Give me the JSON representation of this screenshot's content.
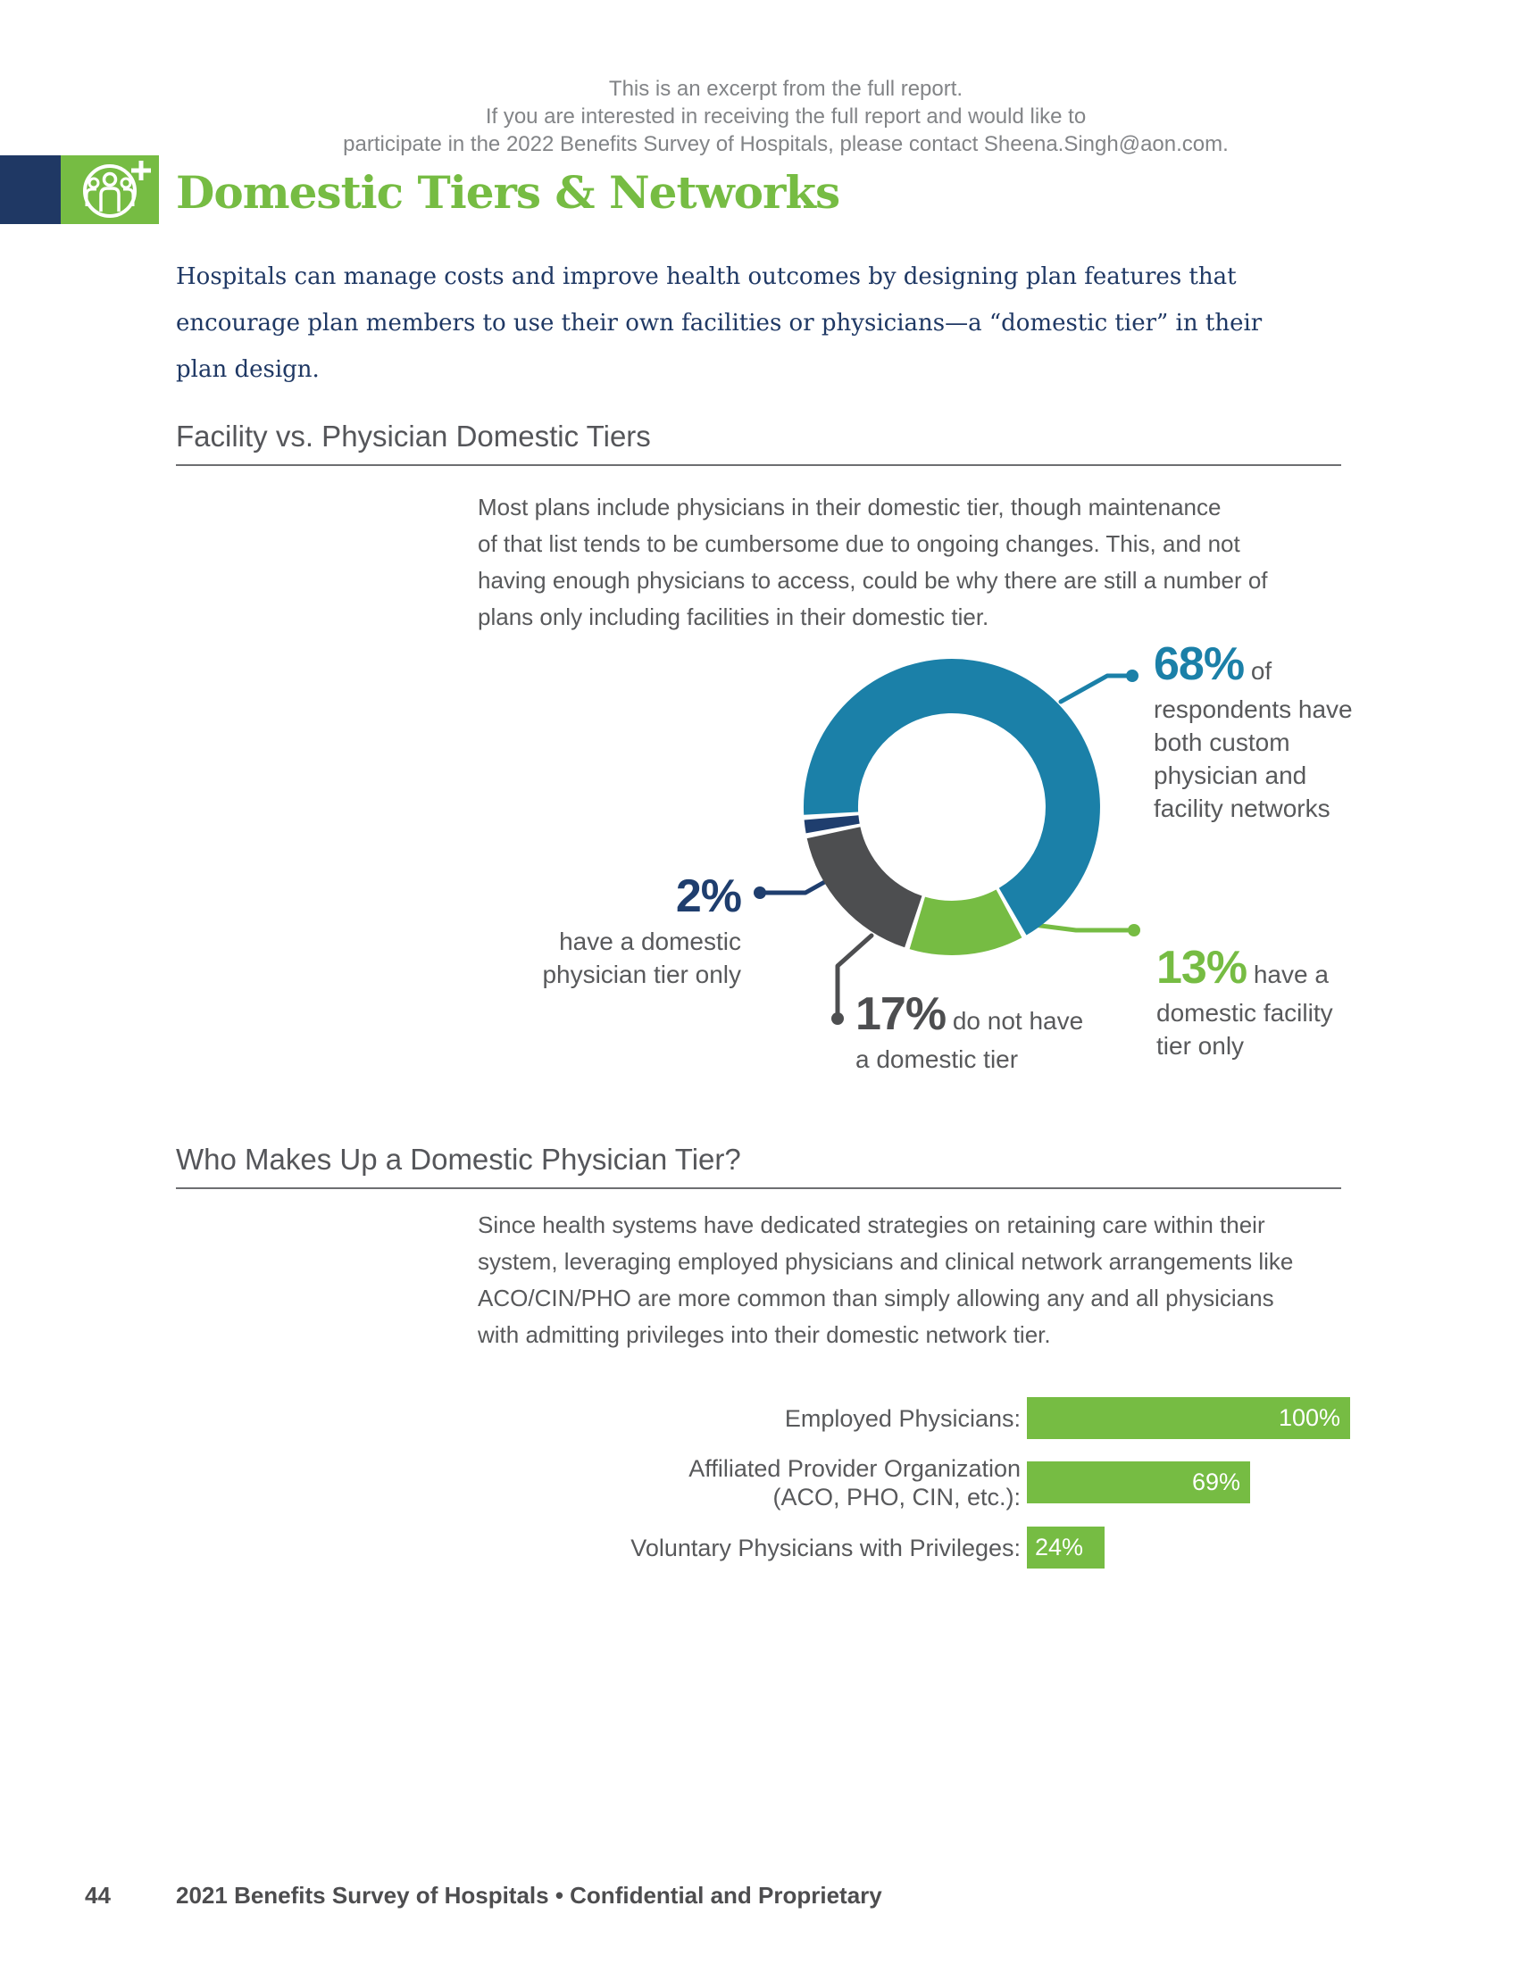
{
  "brand": {
    "green": "#76BC43",
    "navy": "#1F3864",
    "teal": "#1B80A8",
    "slice_gray": "#4D4E50",
    "text_gray": "#58595B",
    "notice_gray": "#828487",
    "footer_gray": "#4D4D4F"
  },
  "header": {
    "excerpt_notice": "This is an excerpt from the full report.\nIf you are interested in receiving the full report and would like to\nparticipate in the 2022 Benefits Survey of Hospitals, please contact Sheena.Singh@aon.com.",
    "title": "Domestic Tiers & Networks",
    "intro": "Hospitals can manage costs and improve health outcomes by designing plan features that\nencourage plan members to use their own facilities or physicians—a “domestic tier” in their\nplan design."
  },
  "section1": {
    "heading": "Facility vs. Physician Domestic Tiers",
    "body": "Most plans include physicians in their domestic tier, though maintenance\nof that list tends to be cumbersome due to ongoing changes. This, and not\nhaving enough physicians to access, could be why there are still a number of\nplans only including facilities in their domestic tier."
  },
  "section2": {
    "heading": "Who Makes Up a Domestic Physician Tier?",
    "body": "Since health systems have dedicated strategies on retaining care within their\nsystem, leveraging employed physicians and clinical network arrangements like\nACO/CIN/PHO are more common than simply allowing any and all physicians\nwith admitting privileges into their domestic network tier."
  },
  "chart_data": [
    {
      "type": "pie",
      "donut": true,
      "title": "Facility vs. Physician Domestic Tiers",
      "start_angle": 266,
      "slices": [
        {
          "value": 68,
          "color": "#1B80A8",
          "pct_label": "68%",
          "rest": "of",
          "lines": "respondents have\nboth custom\nphysician and\nfacility networks"
        },
        {
          "value": 13,
          "color": "#76BC43",
          "pct_label": "13%",
          "rest": "have a",
          "lines": "domestic facility\ntier only"
        },
        {
          "value": 17,
          "color": "#4D4E50",
          "pct_label": "17%",
          "rest": "do not have",
          "lines": "a domestic tier"
        },
        {
          "value": 2,
          "color": "#1F3E6E",
          "pct_label": "2%",
          "rest": "",
          "lines": "have a domestic\nphysician tier only"
        }
      ],
      "legend_position": "callouts"
    },
    {
      "type": "bar",
      "orientation": "horizontal",
      "title": "Who Makes Up a Domestic Physician Tier?",
      "categories": [
        "Employed Physicians:",
        "Affiliated Provider Organization\n(ACO, PHO, CIN, etc.):",
        "Voluntary Physicians with Privileges:"
      ],
      "values": [
        100,
        69,
        24
      ],
      "value_labels": [
        "100%",
        "69%",
        "24%"
      ],
      "bar_color": "#76BC43",
      "xlim": [
        0,
        100
      ],
      "grid": false
    }
  ],
  "footer": {
    "page_number": "44",
    "text": "2021 Benefits Survey of Hospitals  •  Confidential and Proprietary"
  }
}
